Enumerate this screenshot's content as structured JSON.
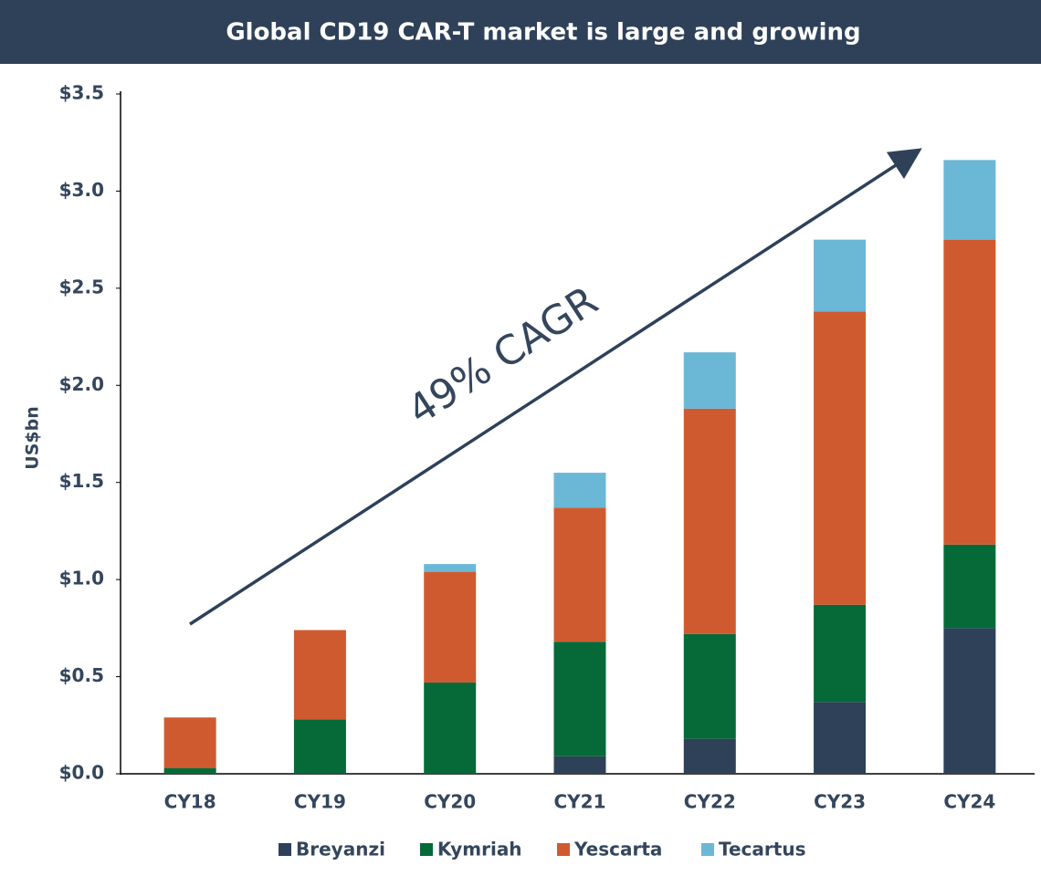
{
  "chart_data": {
    "type": "stacked_bar",
    "title": "Global CD19 CAR-T market is large and growing",
    "y_label": "US$bn",
    "annotation": "49% CAGR",
    "categories": [
      "CY18",
      "CY19",
      "CY20",
      "CY21",
      "CY22",
      "CY23",
      "CY24"
    ],
    "series": [
      {
        "name": "Breyanzi",
        "color": "#2e4159",
        "values": [
          0,
          0,
          0,
          0.09,
          0.18,
          0.37,
          0.75
        ]
      },
      {
        "name": "Kymriah",
        "color": "#056a38",
        "values": [
          0.03,
          0.28,
          0.47,
          0.59,
          0.54,
          0.5,
          0.43
        ]
      },
      {
        "name": "Yescarta",
        "color": "#d05a30",
        "values": [
          0.26,
          0.46,
          0.57,
          0.69,
          1.16,
          1.51,
          1.57
        ]
      },
      {
        "name": "Tecartus",
        "color": "#6bb7d6",
        "values": [
          0,
          0,
          0.04,
          0.18,
          0.29,
          0.37,
          0.41
        ]
      }
    ],
    "ylim": [
      0,
      3.5
    ],
    "yticks": [
      {
        "value": 0,
        "label": "$0.0"
      },
      {
        "value": 0.5,
        "label": "$0.5"
      },
      {
        "value": 1,
        "label": "$1.0"
      },
      {
        "value": 1.5,
        "label": "$1.5"
      },
      {
        "value": 2,
        "label": "$2.0"
      },
      {
        "value": 2.5,
        "label": "$2.5"
      },
      {
        "value": 3,
        "label": "$3.0"
      },
      {
        "value": 3.5,
        "label": "$3.5"
      }
    ],
    "grid": false,
    "legend": "bottom"
  }
}
